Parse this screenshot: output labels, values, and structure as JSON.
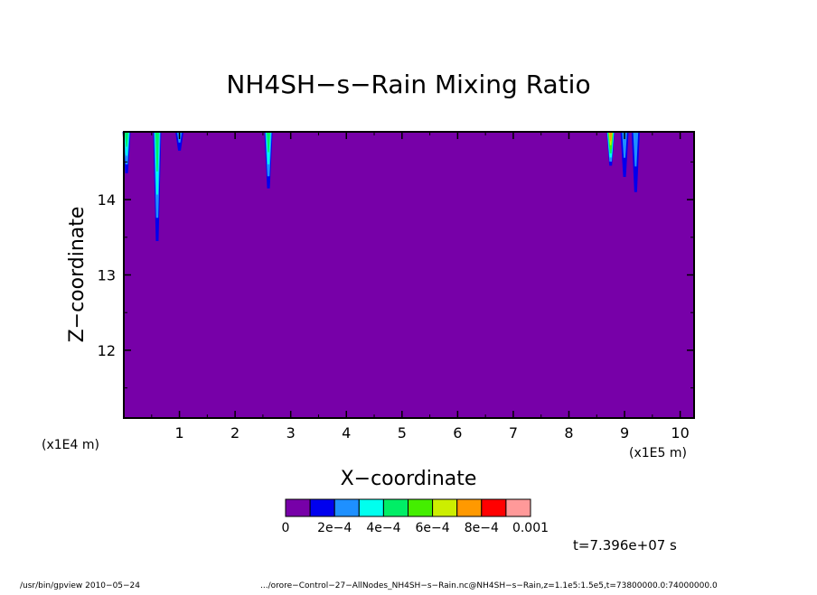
{
  "chart_data": {
    "type": "contour",
    "title": "NH4SH−s−Rain Mixing Ratio",
    "xlabel": "X−coordinate",
    "ylabel": "Z−coordinate",
    "x_unit": "(x1E5 m)",
    "y_unit": "(x1E4 m)",
    "xlim": [
      0.0,
      10.25
    ],
    "ylim": [
      11.1,
      14.9
    ],
    "x_ticks": [
      "1",
      "2",
      "3",
      "4",
      "5",
      "6",
      "7",
      "8",
      "9",
      "10"
    ],
    "y_ticks": [
      "12",
      "13",
      "14"
    ],
    "background_level": 0,
    "features": [
      {
        "x": 0.05,
        "z_bottom": 14.35,
        "max_level": 0.0004
      },
      {
        "x": 0.6,
        "z_bottom": 13.45,
        "max_level": 0.0004
      },
      {
        "x": 1.0,
        "z_bottom": 14.65,
        "max_level": 0.0002
      },
      {
        "x": 2.6,
        "z_bottom": 14.15,
        "max_level": 0.0004
      },
      {
        "x": 8.75,
        "z_bottom": 14.45,
        "max_level": 0.0007
      },
      {
        "x": 9.0,
        "z_bottom": 14.3,
        "max_level": 0.0002
      },
      {
        "x": 9.2,
        "z_bottom": 14.1,
        "max_level": 0.0002
      }
    ],
    "colorbar": {
      "colors": [
        "#7700a8",
        "#0000ee",
        "#1e90ff",
        "#00ffee",
        "#00ee66",
        "#44ee00",
        "#ccee00",
        "#ff9900",
        "#ff0000",
        "#ff9999"
      ],
      "labels": [
        "0",
        "2e−4",
        "4e−4",
        "6e−4",
        "8e−4",
        "0.001"
      ]
    }
  },
  "time_label": "t=7.396e+07 s",
  "footer": {
    "left": "/usr/bin/gpview   2010−05−24",
    "right": ".../orore−Control−27−AllNodes_NH4SH−s−Rain.nc@NH4SH−s−Rain,z=1.1e5:1.5e5,t=73800000.0:74000000.0"
  }
}
